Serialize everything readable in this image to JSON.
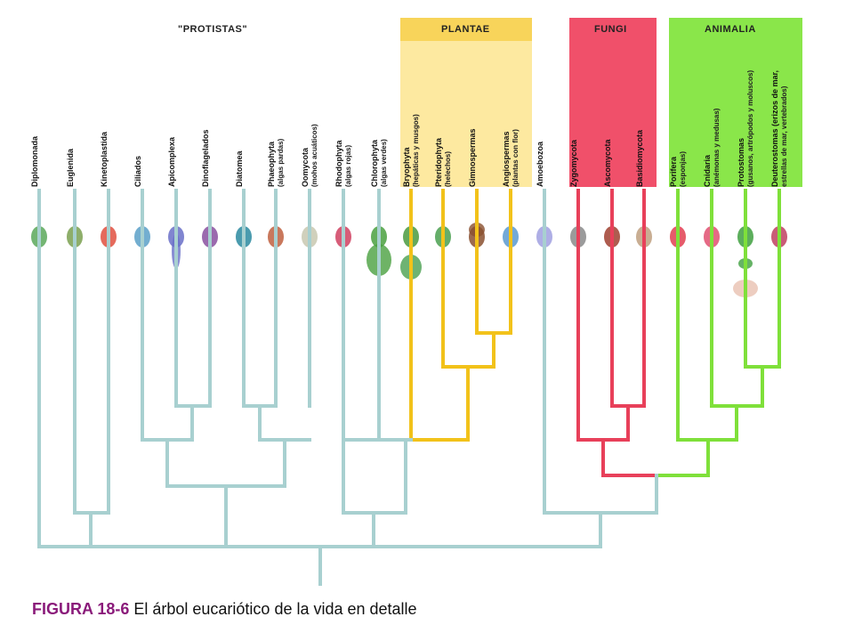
{
  "groups": {
    "protistas": "\"PROTISTAS\"",
    "plantae": "PLANTAE",
    "fungi": "FUNGI",
    "animalia": "ANIMALIA"
  },
  "colors": {
    "protist_line": "#a8d0d0",
    "plantae_band": "#fde9a0",
    "plantae_line": "#f2c21a",
    "fungi_band": "#f0506a",
    "fungi_line": "#e8405a",
    "animalia_band": "#8ae64a",
    "animalia_line": "#7fe03a"
  },
  "taxa": [
    {
      "name": "Diplomonada",
      "sub": ""
    },
    {
      "name": "Euglenida",
      "sub": ""
    },
    {
      "name": "Kinetoplastida",
      "sub": ""
    },
    {
      "name": "Ciliados",
      "sub": ""
    },
    {
      "name": "Apicomplexa",
      "sub": ""
    },
    {
      "name": "Dinoflagelados",
      "sub": ""
    },
    {
      "name": "Diatomea",
      "sub": ""
    },
    {
      "name": "Phaeophyta",
      "sub": "(algas pardas)"
    },
    {
      "name": "Oomycota",
      "sub": "(mohos acuáticos)"
    },
    {
      "name": "Rhodophyta",
      "sub": "(algas rojas)"
    },
    {
      "name": "Chlorophyta",
      "sub": "(algas verdes)"
    },
    {
      "name": "Bryophyta",
      "sub": "(hepáticas y musgos)"
    },
    {
      "name": "Pteridophyta",
      "sub": "(helechos)"
    },
    {
      "name": "Gimnospermas",
      "sub": ""
    },
    {
      "name": "Angiospermas",
      "sub": "(plantas con flor)"
    },
    {
      "name": "Amoebozoa",
      "sub": ""
    },
    {
      "name": "Zygomycota",
      "sub": ""
    },
    {
      "name": "Ascomycota",
      "sub": ""
    },
    {
      "name": "Basidiomycota",
      "sub": ""
    },
    {
      "name": "Porifera",
      "sub": "(esponjas)"
    },
    {
      "name": "Cnidaria",
      "sub": "(anémonas y medusas)"
    },
    {
      "name": "Protostomas",
      "sub": "(gusanos, artrópodos y moluscos)"
    },
    {
      "name": "Deuterostomas (erizos de mar,",
      "sub": "estrellas de mar, vertebrados)"
    }
  ],
  "caption": {
    "figure": "FIGURA 18-6",
    "text": " El árbol eucariótico de la vida en detalle"
  }
}
